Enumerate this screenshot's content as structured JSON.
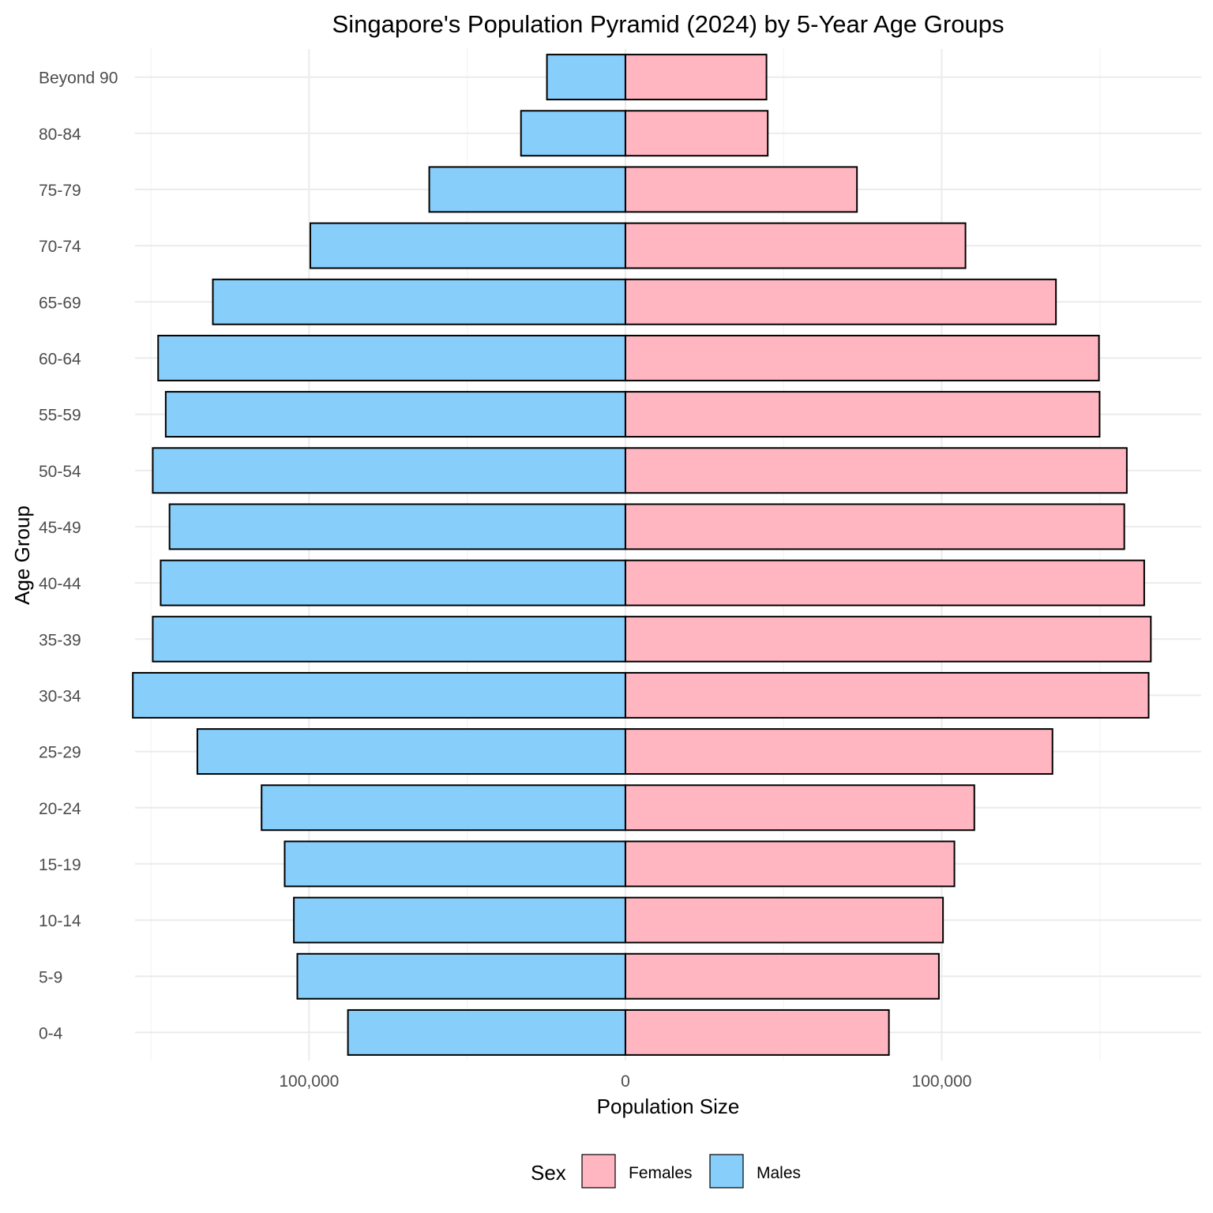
{
  "chart_data": {
    "type": "bar",
    "orientation": "horizontal",
    "layout": "population-pyramid",
    "title": "Singapore's Population Pyramid (2024) by 5-Year Age Groups",
    "xlabel": "Population Size",
    "ylabel": "Age Group",
    "xlim": [
      -155000,
      182000
    ],
    "x_ticks": [
      {
        "value": -100000,
        "label": "100,000"
      },
      {
        "value": 0,
        "label": "0"
      },
      {
        "value": 100000,
        "label": "100,000"
      }
    ],
    "grid": true,
    "legend": {
      "title": "Sex",
      "position": "bottom"
    },
    "categories": [
      "0-4",
      "5-9",
      "10-14",
      "15-19",
      "20-24",
      "25-29",
      "30-34",
      "35-39",
      "40-44",
      "45-49",
      "50-54",
      "55-59",
      "60-64",
      "65-69",
      "70-74",
      "75-79",
      "80-84",
      "Beyond 90"
    ],
    "series": [
      {
        "name": "Females",
        "color": "#ffb6c1",
        "side": "right",
        "values": [
          83300,
          99100,
          100400,
          104000,
          110300,
          135000,
          165400,
          166100,
          164000,
          157700,
          158500,
          149900,
          149700,
          136100,
          107500,
          73200,
          45000,
          44600
        ]
      },
      {
        "name": "Males",
        "color": "#87cefa",
        "side": "left",
        "values": [
          87700,
          103700,
          104800,
          107700,
          115000,
          135300,
          155700,
          149400,
          146900,
          144100,
          149400,
          145300,
          147700,
          130400,
          99600,
          62000,
          33000,
          24800
        ]
      }
    ]
  }
}
